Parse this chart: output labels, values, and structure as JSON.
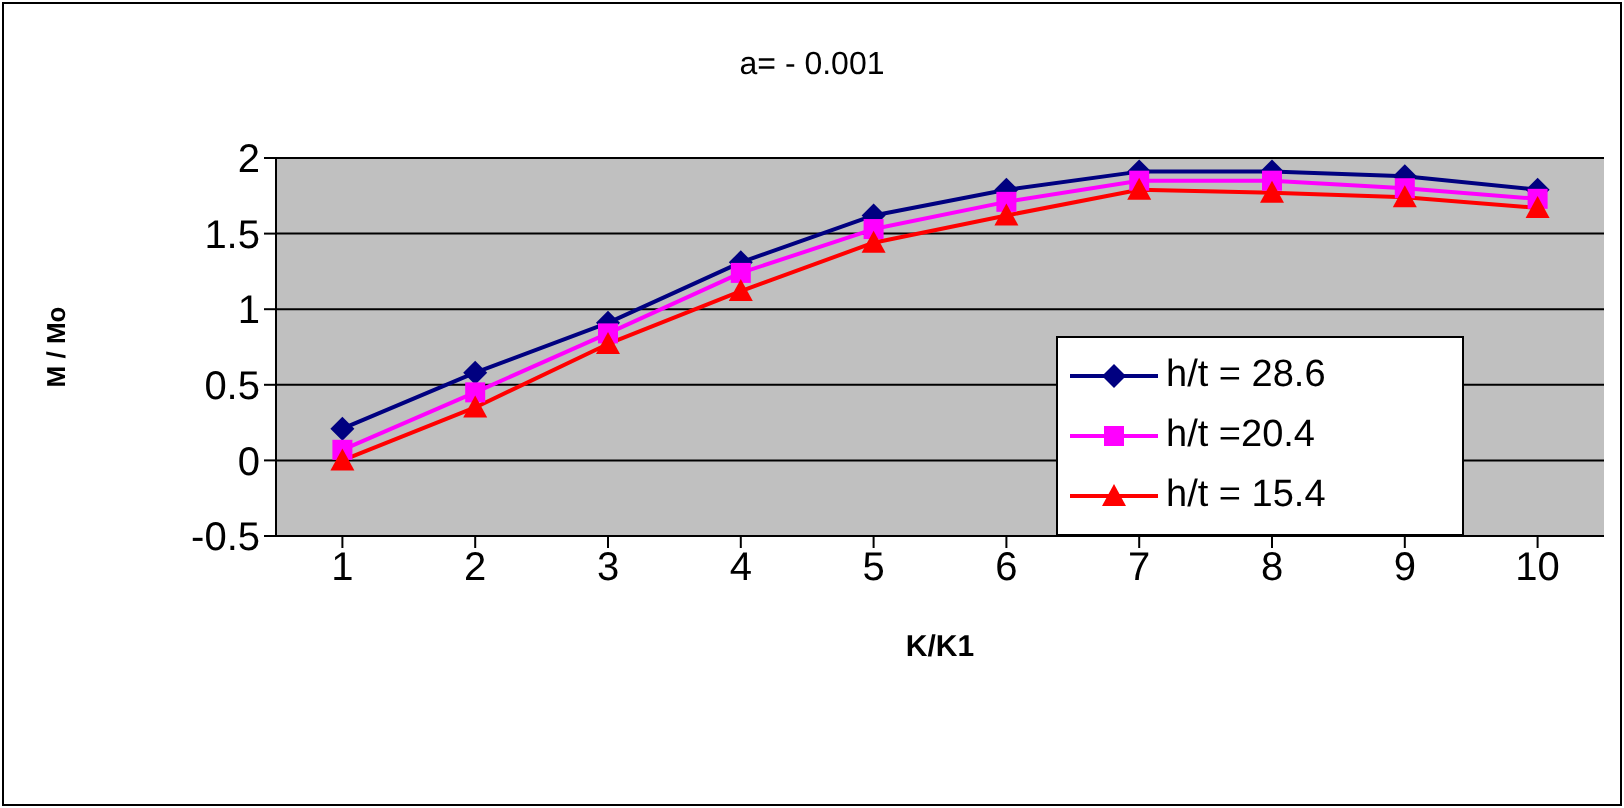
{
  "chart_data": {
    "type": "line",
    "title": "a= - 0.001",
    "xlabel": "K/K1",
    "ylabel": "M / Mo",
    "categories": [
      "1",
      "2",
      "3",
      "4",
      "5",
      "6",
      "7",
      "8",
      "9",
      "10"
    ],
    "series": [
      {
        "name": "h/t = 28.6",
        "color": "#000080",
        "marker": "diamond",
        "values": [
          0.21,
          0.58,
          0.91,
          1.31,
          1.62,
          1.79,
          1.91,
          1.91,
          1.88,
          1.79
        ]
      },
      {
        "name": "h/t =20.4",
        "color": "#ff00ff",
        "marker": "square",
        "values": [
          0.07,
          0.45,
          0.84,
          1.24,
          1.53,
          1.71,
          1.85,
          1.85,
          1.8,
          1.73
        ]
      },
      {
        "name": "h/t = 15.4",
        "color": "#ff0000",
        "marker": "triangle",
        "values": [
          0.0,
          0.35,
          0.77,
          1.12,
          1.44,
          1.62,
          1.79,
          1.77,
          1.74,
          1.67
        ]
      }
    ],
    "ylim": [
      -0.5,
      2
    ],
    "yticks": [
      -0.5,
      0,
      0.5,
      1,
      1.5,
      2
    ],
    "grid": "y",
    "legend": "right",
    "line_style": "solid"
  }
}
